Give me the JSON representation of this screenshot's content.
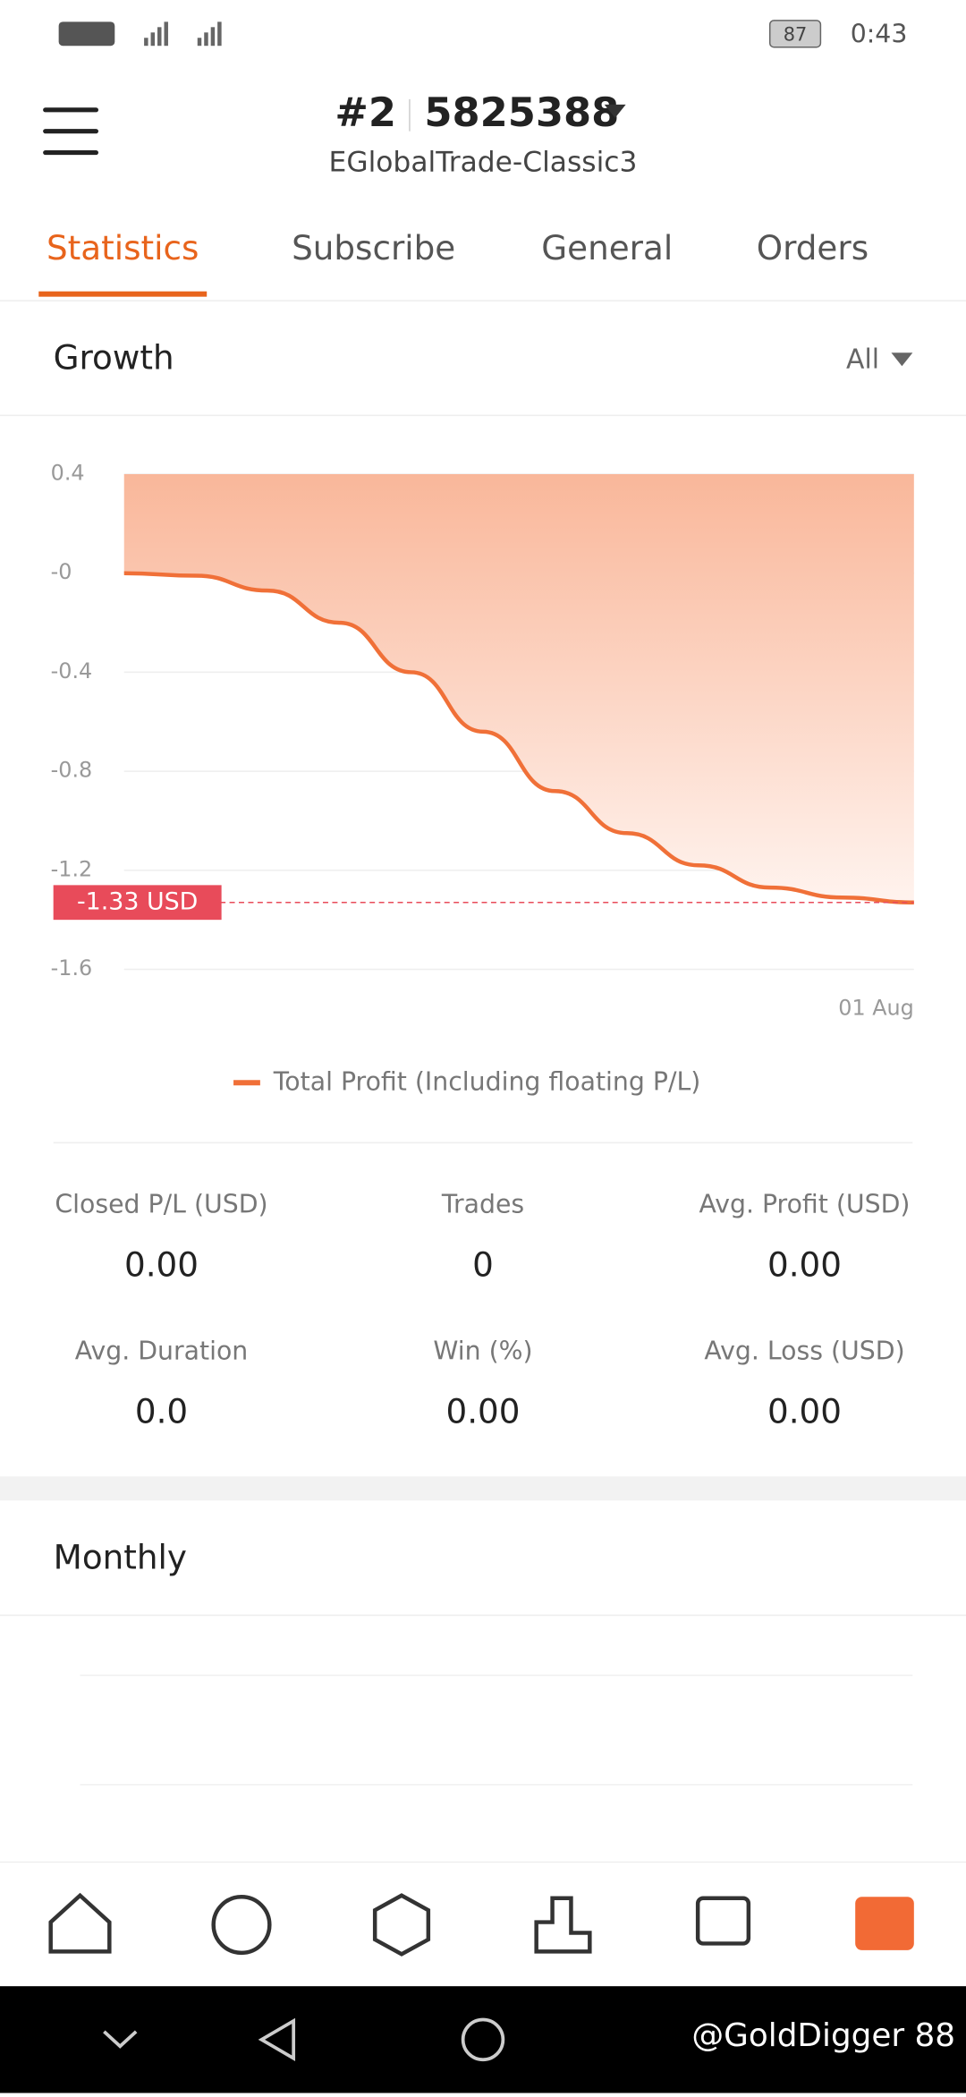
{
  "status_bar": {
    "battery": "87",
    "time": "0:43"
  },
  "header": {
    "account": "#2",
    "number": "5825388",
    "server": "EGlobalTrade-Classic3"
  },
  "tabs": [
    "Statistics",
    "Subscribe",
    "General",
    "Orders"
  ],
  "growth": {
    "title": "Growth",
    "filter": "All"
  },
  "chart_data": {
    "type": "line",
    "categories": [
      null,
      null,
      null,
      null,
      null,
      null,
      null,
      null,
      null,
      null,
      null,
      "01 Aug"
    ],
    "series": [
      {
        "name": "Total Profit (Including floating P/L)",
        "color": "#f07038",
        "values": [
          0,
          -0.01,
          -0.07,
          -0.2,
          -0.4,
          -0.64,
          -0.88,
          -1.05,
          -1.18,
          -1.27,
          -1.31,
          -1.33
        ]
      }
    ],
    "ylim": [
      -1.6,
      0.4
    ],
    "yticks": [
      0.4,
      {
        "value": 0,
        "label": "-0"
      },
      -0.4,
      -0.8,
      -1.2,
      -1.6
    ],
    "grid": true,
    "marker": {
      "value": -1.33,
      "label": "-1.33 USD",
      "color": "#e84b5a"
    }
  },
  "stats": [
    {
      "label": "Closed P/L (USD)",
      "value": "0.00"
    },
    {
      "label": "Trades",
      "value": "0"
    },
    {
      "label": "Avg. Profit (USD)",
      "value": "0.00"
    },
    {
      "label": "Avg. Duration",
      "value": "0.0"
    },
    {
      "label": "Win (%)",
      "value": "0.00"
    },
    {
      "label": "Avg. Loss (USD)",
      "value": "0.00"
    }
  ],
  "monthly": {
    "title": "Monthly"
  },
  "watermark": "@GoldDigger 88"
}
